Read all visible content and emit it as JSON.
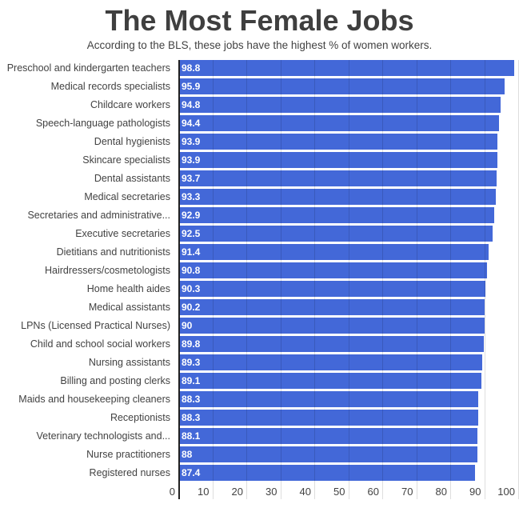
{
  "chart_data": {
    "type": "bar",
    "orientation": "horizontal",
    "title": "The Most Female Jobs",
    "subtitle": "According to the BLS, these jobs have the highest % of women workers.",
    "xlabel": "",
    "ylabel": "",
    "xlim": [
      0,
      100
    ],
    "x_ticks": [
      0,
      10,
      20,
      30,
      40,
      50,
      60,
      70,
      80,
      90,
      100
    ],
    "grid": true,
    "legend": false,
    "categories": [
      "Preschool and kindergarten teachers",
      "Medical records specialists",
      "Childcare workers",
      "Speech-language pathologists",
      "Dental hygienists",
      "Skincare specialists",
      "Dental assistants",
      "Medical secretaries",
      "Secretaries and administrative...",
      "Executive secretaries",
      "Dietitians and nutritionists",
      "Hairdressers/cosmetologists",
      "Home health aides",
      "Medical assistants",
      "LPNs (Licensed Practical Nurses)",
      "Child and school social workers",
      "Nursing assistants",
      "Billing and posting clerks",
      "Maids and housekeeping cleaners",
      "Receptionists",
      "Veterinary technologists and...",
      "Nurse practitioners",
      "Registered nurses"
    ],
    "values": [
      98.8,
      95.9,
      94.8,
      94.4,
      93.9,
      93.9,
      93.7,
      93.3,
      92.9,
      92.5,
      91.4,
      90.8,
      90.3,
      90.2,
      90,
      89.8,
      89.3,
      89.1,
      88.3,
      88.3,
      88.1,
      88,
      87.4
    ],
    "value_labels": [
      "98.8",
      "95.9",
      "94.8",
      "94.4",
      "93.9",
      "93.9",
      "93.7",
      "93.3",
      "92.9",
      "92.5",
      "91.4",
      "90.8",
      "90.3",
      "90.2",
      "90",
      "89.8",
      "89.3",
      "89.1",
      "88.3",
      "88.3",
      "88.1",
      "88",
      "87.4"
    ],
    "style": {
      "bar_color": "#4368d8",
      "value_label_color": "#ffffff",
      "text_color": "#424242",
      "title_color": "#3f3f3f",
      "axis_line_color": "#212121",
      "gridline_color": "rgba(0,0,0,0.13)",
      "background": "#ffffff"
    }
  }
}
